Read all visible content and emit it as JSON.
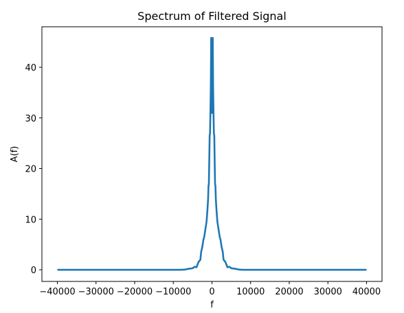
{
  "chart_data": {
    "type": "line",
    "title": "Spectrum of Filtered Signal",
    "xlabel": "f",
    "ylabel": "A(f)",
    "xlim": [
      -44000,
      44000
    ],
    "ylim": [
      -2.3,
      48.0
    ],
    "xticks": [
      -40000,
      -30000,
      -20000,
      -10000,
      0,
      10000,
      20000,
      30000,
      40000
    ],
    "xtick_labels": [
      "−40000",
      "−30000",
      "−20000",
      "−10000",
      "0",
      "10000",
      "20000",
      "30000",
      "40000"
    ],
    "yticks": [
      0,
      10,
      20,
      30,
      40
    ],
    "ytick_labels": [
      "0",
      "10",
      "20",
      "30",
      "40"
    ],
    "grid": false,
    "series": [
      {
        "color": "#1f77b4",
        "x": [
          -40000,
          -8000,
          -7000,
          -6000,
          -5000,
          -4500,
          -4000,
          -3500,
          -3000,
          -2800,
          -2500,
          -2200,
          -2000,
          -1800,
          -1600,
          -1400,
          -1200,
          -1000,
          -900,
          -800,
          -700,
          -600,
          -500,
          -400,
          -300,
          -200,
          -150,
          -100,
          -50,
          0,
          50,
          100,
          150,
          200,
          300,
          400,
          500,
          600,
          700,
          800,
          900,
          1000,
          1200,
          1400,
          1600,
          1800,
          2000,
          2200,
          2500,
          2800,
          3000,
          3500,
          4000,
          4500,
          5000,
          6000,
          7000,
          8000,
          40000
        ],
        "y": [
          0,
          0,
          0.05,
          0.2,
          0.3,
          0.6,
          0.5,
          1.5,
          2.0,
          3.5,
          4.5,
          6.0,
          6.5,
          7.5,
          8.5,
          9.5,
          11.5,
          14.0,
          16.5,
          17.0,
          21.5,
          26.5,
          27.0,
          31.0,
          36.0,
          45.8,
          38.0,
          31.0,
          33.0,
          36.0,
          33.0,
          31.0,
          38.0,
          45.8,
          36.0,
          31.0,
          27.0,
          26.5,
          21.5,
          17.0,
          16.5,
          14.0,
          11.5,
          9.5,
          8.5,
          7.5,
          6.5,
          6.0,
          4.5,
          3.5,
          2.0,
          1.5,
          0.5,
          0.6,
          0.3,
          0.2,
          0.05,
          0,
          0
        ]
      }
    ]
  }
}
